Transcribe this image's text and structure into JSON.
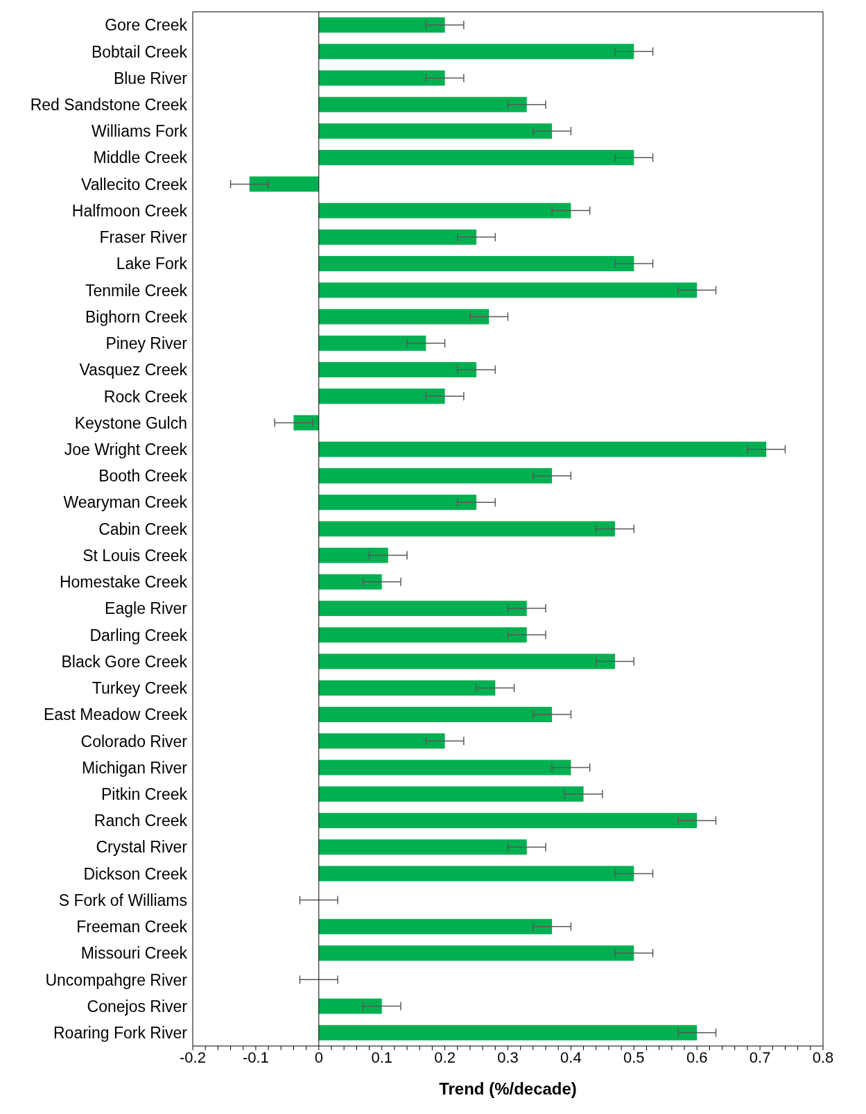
{
  "chart_data": {
    "type": "bar",
    "orientation": "horizontal",
    "xlabel": "Trend (%/decade)",
    "categories": [
      "Gore Creek",
      "Bobtail Creek",
      "Blue River",
      "Red Sandstone Creek",
      "Williams Fork",
      "Middle Creek",
      "Vallecito Creek",
      "Halfmoon Creek",
      "Fraser River",
      "Lake Fork",
      "Tenmile Creek",
      "Bighorn Creek",
      "Piney River",
      "Vasquez Creek",
      "Rock Creek",
      "Keystone Gulch",
      "Joe Wright Creek",
      "Booth Creek",
      "Wearyman Creek",
      "Cabin Creek",
      "St Louis Creek",
      "Homestake Creek",
      "Eagle River",
      "Darling Creek",
      "Black Gore Creek",
      "Turkey Creek",
      "East Meadow Creek",
      "Colorado River",
      "Michigan River",
      "Pitkin Creek",
      "Ranch Creek",
      "Crystal River",
      "Dickson Creek",
      "S Fork of Williams",
      "Freeman Creek",
      "Missouri Creek",
      "Uncompahgre River",
      "Conejos River",
      "Roaring Fork River"
    ],
    "values": [
      0.2,
      0.5,
      0.2,
      0.33,
      0.37,
      0.5,
      -0.11,
      0.4,
      0.25,
      0.5,
      0.6,
      0.27,
      0.17,
      0.25,
      0.2,
      -0.04,
      0.71,
      0.37,
      0.25,
      0.47,
      0.11,
      0.1,
      0.33,
      0.33,
      0.47,
      0.28,
      0.37,
      0.2,
      0.4,
      0.42,
      0.6,
      0.33,
      0.5,
      0,
      0.37,
      0.5,
      0,
      0.1,
      0.6
    ],
    "errors": [
      0.03,
      0.03,
      0.03,
      0.03,
      0.03,
      0.03,
      0.03,
      0.03,
      0.03,
      0.03,
      0.03,
      0.03,
      0.03,
      0.03,
      0.03,
      0.03,
      0.03,
      0.03,
      0.03,
      0.03,
      0.03,
      0.03,
      0.03,
      0.03,
      0.03,
      0.03,
      0.03,
      0.03,
      0.03,
      0.03,
      0.03,
      0.03,
      0.03,
      0.03,
      0.03,
      0.03,
      0.03,
      0.03,
      0.03
    ],
    "color": "#00b050",
    "xlim": [
      -0.2,
      0.8
    ],
    "xticks": [
      -0.2,
      {
        "value": -0.18,
        "label": null
      },
      {
        "value": -0.16,
        "label": null
      },
      {
        "value": -0.14,
        "label": null
      },
      {
        "value": -0.12,
        "label": null
      },
      -0.1,
      {
        "value": -0.08,
        "label": null
      },
      {
        "value": -0.06,
        "label": null
      },
      {
        "value": -0.04,
        "label": null
      },
      {
        "value": -0.02,
        "label": null
      },
      0,
      {
        "value": 0.02,
        "label": null
      },
      {
        "value": 0.04,
        "label": null
      },
      {
        "value": 0.06,
        "label": null
      },
      {
        "value": 0.08,
        "label": null
      },
      0.1,
      {
        "value": 0.12,
        "label": null
      },
      {
        "value": 0.14,
        "label": null
      },
      {
        "value": 0.16,
        "label": null
      },
      {
        "value": 0.18,
        "label": null
      },
      0.2,
      {
        "value": 0.22,
        "label": null
      },
      {
        "value": 0.24,
        "label": null
      },
      {
        "value": 0.26,
        "label": null
      },
      {
        "value": 0.28,
        "label": null
      },
      0.3,
      {
        "value": 0.32,
        "label": null
      },
      {
        "value": 0.34,
        "label": null
      },
      {
        "value": 0.36,
        "label": null
      },
      {
        "value": 0.38,
        "label": null
      },
      0.4,
      {
        "value": 0.42,
        "label": null
      },
      {
        "value": 0.44,
        "label": null
      },
      {
        "value": 0.46,
        "label": null
      },
      {
        "value": 0.48,
        "label": null
      },
      0.5,
      {
        "value": 0.52,
        "label": null
      },
      {
        "value": 0.54,
        "label": null
      },
      {
        "value": 0.56,
        "label": null
      },
      {
        "value": 0.58,
        "label": null
      },
      0.6,
      {
        "value": 0.62,
        "label": null
      },
      {
        "value": 0.64,
        "label": null
      },
      {
        "value": 0.66,
        "label": null
      },
      {
        "value": 0.68,
        "label": null
      },
      0.7,
      {
        "value": 0.72,
        "label": null
      },
      {
        "value": 0.74,
        "label": null
      },
      {
        "value": 0.76,
        "label": null
      },
      {
        "value": 0.78,
        "label": null
      },
      0.8
    ],
    "ref_lines": [
      {
        "axis": "x",
        "value": 0,
        "color": "#000000"
      }
    ]
  }
}
